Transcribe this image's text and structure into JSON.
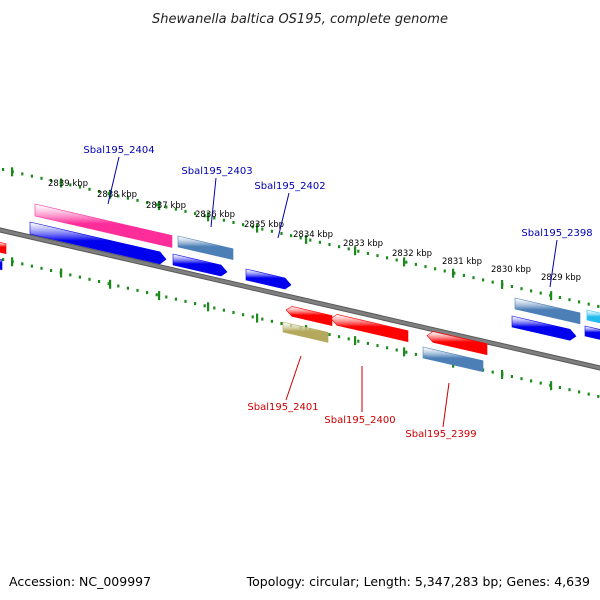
{
  "title": "Shewanella baltica OS195, complete genome",
  "accession": "Accession: NC_009997",
  "summary": "Topology: circular; Length: 5,347,283 bp; Genes: 4,639",
  "colors": {
    "backbone": "#7f7f7f",
    "ruler": "#1b8a1b",
    "forward_label": "#0000b0",
    "reverse_label": "#cc0000",
    "blue": "#0000ee",
    "steelblue": "#4b7fb6",
    "magenta": "#ff2d9a",
    "red": "#ff0000",
    "khaki": "#b4a85c",
    "cyan": "#22bbee"
  },
  "ruler_ticks": [
    "2839 kbp",
    "2838 kbp",
    "2837 kbp",
    "2836 kbp",
    "2835 kbp",
    "2834 kbp",
    "2833 kbp",
    "2832 kbp",
    "2831 kbp",
    "2830 kbp",
    "2829 kbp"
  ],
  "labels": [
    {
      "id": "Sbal195_2404",
      "text": "Sbal195_2404",
      "strand": "forward"
    },
    {
      "id": "Sbal195_2403",
      "text": "Sbal195_2403",
      "strand": "forward"
    },
    {
      "id": "Sbal195_2402",
      "text": "Sbal195_2402",
      "strand": "forward"
    },
    {
      "id": "Sbal195_2398",
      "text": "Sbal195_2398",
      "strand": "forward"
    },
    {
      "id": "Sbal195_2401",
      "text": "Sbal195_2401",
      "strand": "reverse"
    },
    {
      "id": "Sbal195_2400",
      "text": "Sbal195_2400",
      "strand": "reverse"
    },
    {
      "id": "Sbal195_2399",
      "text": "Sbal195_2399",
      "strand": "reverse"
    }
  ]
}
